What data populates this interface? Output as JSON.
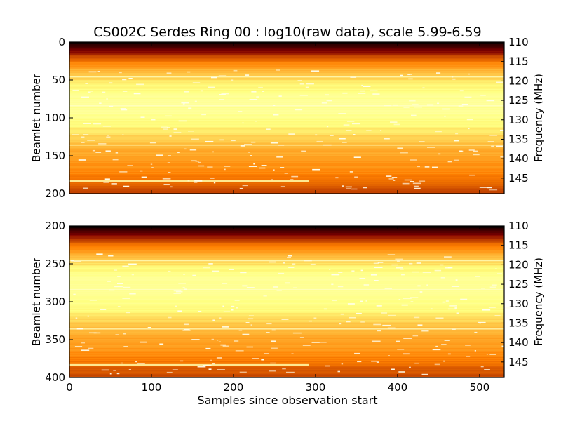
{
  "chart_data": {
    "type": "heatmap",
    "title": "CS002C Serdes Ring 00 : log10(raw data), scale 5.99-6.59",
    "xlabel": "Samples since observation start",
    "colormap": "afmhot",
    "color_scale": [
      5.99,
      6.59
    ],
    "colors": {
      "low": "#000000",
      "mid": "#e86000",
      "high": "#ffff90"
    },
    "x_range": [
      0,
      530
    ],
    "x_ticks": [
      0,
      100,
      200,
      300,
      400,
      500
    ],
    "panels": [
      {
        "ylabel": "Beamlet number",
        "y2label": "Frequency (MHz)",
        "y_range": [
          0,
          200
        ],
        "y_ticks": [
          0,
          50,
          100,
          150,
          200
        ],
        "freq_range": [
          110,
          149
        ],
        "freq_ticks": [
          110,
          115,
          120,
          125,
          130,
          135,
          140,
          145
        ],
        "rfi_lines_beamlet": [
          46,
          84,
          136,
          183
        ],
        "strong_line_beamlet": 183
      },
      {
        "ylabel": "Beamlet number",
        "y2label": "Frequency (MHz)",
        "y_range": [
          200,
          400
        ],
        "y_ticks": [
          200,
          250,
          300,
          350,
          400
        ],
        "freq_range": [
          110,
          149
        ],
        "freq_ticks": [
          110,
          115,
          120,
          125,
          130,
          135,
          140,
          145
        ],
        "rfi_lines_beamlet": [
          246,
          284,
          336,
          383
        ],
        "strong_line_beamlet": 383
      }
    ]
  }
}
